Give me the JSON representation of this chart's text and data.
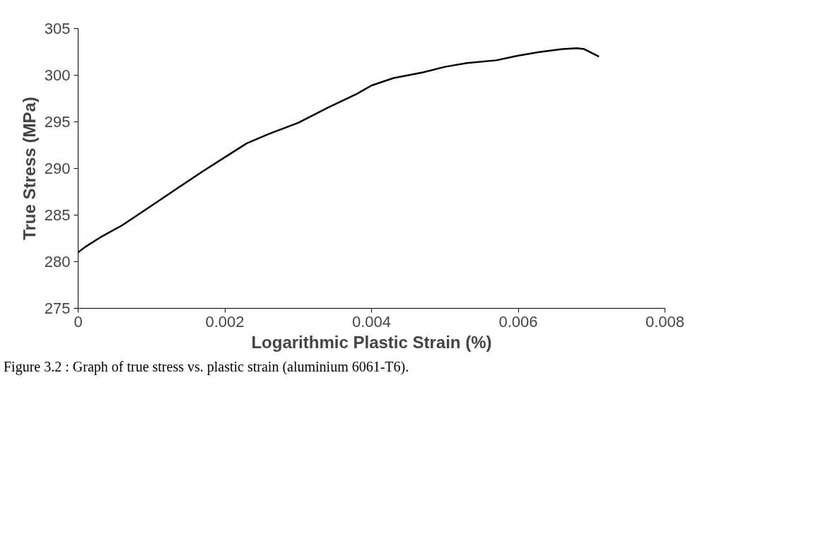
{
  "chart_data": {
    "type": "line",
    "xlabel": "Logarithmic Plastic Strain (%)",
    "ylabel": "True Stress (MPa)",
    "x": [
      0,
      0.0001,
      0.0003,
      0.0006,
      0.001,
      0.0013,
      0.0017,
      0.002,
      0.0023,
      0.0026,
      0.003,
      0.0034,
      0.0038,
      0.004,
      0.0043,
      0.0047,
      0.005,
      0.0053,
      0.0057,
      0.006,
      0.0063,
      0.0066,
      0.0068,
      0.0069,
      0.007,
      0.0071
    ],
    "series": [
      {
        "color": "#000000",
        "values": [
          281,
          281.6,
          282.6,
          283.9,
          286,
          287.6,
          289.7,
          291.2,
          292.7,
          293.7,
          294.9,
          296.5,
          298,
          298.9,
          299.7,
          300.3,
          300.9,
          301.3,
          301.6,
          302.1,
          302.5,
          302.8,
          302.9,
          302.8,
          302.4,
          302
        ]
      }
    ],
    "xlim": [
      0,
      0.008
    ],
    "xticks": [
      0,
      0.002,
      0.004,
      0.006,
      0.008
    ],
    "ylim": [
      275,
      305
    ],
    "yticks": [
      275,
      280,
      285,
      290,
      295,
      300,
      305
    ],
    "grid": false,
    "marker": "none",
    "line_style": "solid",
    "annotations": [
      "Figure 3.2 : Graph of true stress vs. plastic strain (aluminium 6061-T6)."
    ]
  }
}
